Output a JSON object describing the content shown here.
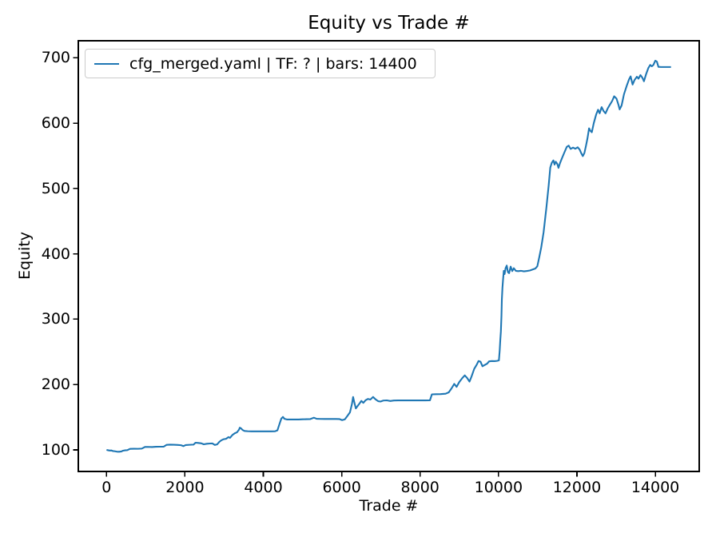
{
  "chart_data": {
    "type": "line",
    "title": "Equity vs Trade #",
    "xlabel": "Trade #",
    "ylabel": "Equity",
    "xlim": [
      -720,
      15120
    ],
    "ylim": [
      67,
      726
    ],
    "xticks": [
      0,
      2000,
      4000,
      6000,
      8000,
      10000,
      12000,
      14000
    ],
    "yticks": [
      100,
      200,
      300,
      400,
      500,
      600,
      700
    ],
    "grid": false,
    "legend": {
      "position": "upper-left",
      "entries": [
        {
          "label": "cfg_merged.yaml | TF: ? | bars: 14400",
          "color": "#1f77b4"
        }
      ]
    },
    "series": [
      {
        "name": "cfg_merged.yaml | TF: ? | bars: 14400",
        "color": "#1f77b4",
        "points": [
          [
            0,
            100
          ],
          [
            40,
            99.5
          ],
          [
            80,
            99
          ],
          [
            120,
            99.2
          ],
          [
            160,
            98.3
          ],
          [
            200,
            98
          ],
          [
            260,
            97.4
          ],
          [
            320,
            97.2
          ],
          [
            380,
            97.6
          ],
          [
            420,
            98.8
          ],
          [
            470,
            99.3
          ],
          [
            530,
            99.6
          ],
          [
            600,
            101.6
          ],
          [
            700,
            101.8
          ],
          [
            800,
            101.7
          ],
          [
            900,
            102
          ],
          [
            980,
            104.5
          ],
          [
            1060,
            104.6
          ],
          [
            1160,
            104.4
          ],
          [
            1260,
            104.8
          ],
          [
            1360,
            104.9
          ],
          [
            1460,
            105
          ],
          [
            1530,
            107.7
          ],
          [
            1620,
            108
          ],
          [
            1720,
            107.9
          ],
          [
            1820,
            107.6
          ],
          [
            1900,
            107.2
          ],
          [
            1960,
            105.8
          ],
          [
            2020,
            107.4
          ],
          [
            2120,
            107.8
          ],
          [
            2220,
            108.1
          ],
          [
            2270,
            111
          ],
          [
            2340,
            110.6
          ],
          [
            2420,
            110
          ],
          [
            2480,
            108.6
          ],
          [
            2560,
            109.4
          ],
          [
            2640,
            109.8
          ],
          [
            2700,
            109.9
          ],
          [
            2760,
            107.6
          ],
          [
            2820,
            108.4
          ],
          [
            2880,
            112.5
          ],
          [
            2930,
            114.8
          ],
          [
            2990,
            116.4
          ],
          [
            3050,
            117
          ],
          [
            3110,
            119.6
          ],
          [
            3150,
            118.4
          ],
          [
            3210,
            122.8
          ],
          [
            3270,
            125.4
          ],
          [
            3330,
            127
          ],
          [
            3380,
            131
          ],
          [
            3400,
            134
          ],
          [
            3430,
            133
          ],
          [
            3470,
            130.5
          ],
          [
            3520,
            129
          ],
          [
            3600,
            128.6
          ],
          [
            3700,
            128.4
          ],
          [
            3800,
            128.3
          ],
          [
            3900,
            128.3
          ],
          [
            4000,
            128.4
          ],
          [
            4100,
            128.3
          ],
          [
            4200,
            128.4
          ],
          [
            4300,
            128.5
          ],
          [
            4360,
            130
          ],
          [
            4420,
            141
          ],
          [
            4460,
            148
          ],
          [
            4500,
            150.5
          ],
          [
            4540,
            147.5
          ],
          [
            4600,
            146.6
          ],
          [
            4700,
            146.5
          ],
          [
            4800,
            146.5
          ],
          [
            4900,
            146.6
          ],
          [
            5000,
            146.8
          ],
          [
            5100,
            147
          ],
          [
            5200,
            147.2
          ],
          [
            5290,
            149.3
          ],
          [
            5360,
            147.6
          ],
          [
            5460,
            147.4
          ],
          [
            5560,
            147.3
          ],
          [
            5660,
            147.3
          ],
          [
            5760,
            147.3
          ],
          [
            5860,
            147.3
          ],
          [
            5940,
            147.2
          ],
          [
            6010,
            145.6
          ],
          [
            6080,
            146.8
          ],
          [
            6150,
            152.5
          ],
          [
            6210,
            157.5
          ],
          [
            6260,
            170
          ],
          [
            6290,
            181
          ],
          [
            6320,
            173
          ],
          [
            6360,
            163.5
          ],
          [
            6410,
            167.5
          ],
          [
            6460,
            171.5
          ],
          [
            6500,
            175
          ],
          [
            6550,
            172
          ],
          [
            6610,
            176
          ],
          [
            6670,
            178
          ],
          [
            6730,
            177
          ],
          [
            6800,
            181
          ],
          [
            6860,
            177.5
          ],
          [
            6930,
            174.5
          ],
          [
            6990,
            174
          ],
          [
            7060,
            175.5
          ],
          [
            7150,
            175.8
          ],
          [
            7240,
            174.8
          ],
          [
            7330,
            175.6
          ],
          [
            7440,
            175.7
          ],
          [
            7560,
            175.7
          ],
          [
            7700,
            175.7
          ],
          [
            7850,
            175.7
          ],
          [
            8000,
            175.7
          ],
          [
            8130,
            175.7
          ],
          [
            8250,
            175.8
          ],
          [
            8300,
            185
          ],
          [
            8400,
            185.2
          ],
          [
            8520,
            185.4
          ],
          [
            8650,
            186
          ],
          [
            8730,
            188
          ],
          [
            8800,
            194
          ],
          [
            8870,
            201
          ],
          [
            8930,
            196.5
          ],
          [
            9000,
            204
          ],
          [
            9070,
            209.5
          ],
          [
            9140,
            214
          ],
          [
            9200,
            210
          ],
          [
            9260,
            204.5
          ],
          [
            9310,
            212
          ],
          [
            9380,
            224
          ],
          [
            9440,
            230
          ],
          [
            9490,
            236
          ],
          [
            9540,
            235
          ],
          [
            9590,
            228
          ],
          [
            9650,
            230
          ],
          [
            9710,
            232
          ],
          [
            9760,
            235.5
          ],
          [
            9830,
            236
          ],
          [
            9900,
            235.8
          ],
          [
            9960,
            236.2
          ],
          [
            10010,
            237
          ],
          [
            10030,
            252
          ],
          [
            10045,
            268
          ],
          [
            10060,
            281
          ],
          [
            10075,
            305
          ],
          [
            10085,
            330
          ],
          [
            10100,
            348
          ],
          [
            10115,
            360
          ],
          [
            10135,
            374
          ],
          [
            10155,
            369
          ],
          [
            10180,
            378
          ],
          [
            10210,
            382
          ],
          [
            10240,
            372
          ],
          [
            10270,
            370.5
          ],
          [
            10310,
            380.5
          ],
          [
            10350,
            373.5
          ],
          [
            10390,
            378
          ],
          [
            10440,
            374
          ],
          [
            10500,
            373.5
          ],
          [
            10570,
            374
          ],
          [
            10650,
            373.2
          ],
          [
            10730,
            373.8
          ],
          [
            10800,
            374.5
          ],
          [
            10870,
            376
          ],
          [
            10940,
            377.5
          ],
          [
            10990,
            381
          ],
          [
            11040,
            395
          ],
          [
            11090,
            410
          ],
          [
            11150,
            433
          ],
          [
            11220,
            470
          ],
          [
            11280,
            505
          ],
          [
            11320,
            532
          ],
          [
            11360,
            539.5
          ],
          [
            11400,
            543
          ],
          [
            11430,
            536.5
          ],
          [
            11460,
            541
          ],
          [
            11500,
            537.5
          ],
          [
            11530,
            531.5
          ],
          [
            11570,
            539
          ],
          [
            11630,
            548
          ],
          [
            11690,
            556.5
          ],
          [
            11740,
            563.5
          ],
          [
            11790,
            565.5
          ],
          [
            11840,
            560.5
          ],
          [
            11900,
            562.5
          ],
          [
            11960,
            560.8
          ],
          [
            12020,
            563
          ],
          [
            12070,
            559.5
          ],
          [
            12110,
            554
          ],
          [
            12150,
            549.5
          ],
          [
            12190,
            554
          ],
          [
            12230,
            565
          ],
          [
            12270,
            577
          ],
          [
            12310,
            592
          ],
          [
            12340,
            588.5
          ],
          [
            12380,
            586
          ],
          [
            12430,
            600
          ],
          [
            12490,
            613
          ],
          [
            12540,
            620.5
          ],
          [
            12580,
            615
          ],
          [
            12630,
            624.5
          ],
          [
            12680,
            618.5
          ],
          [
            12730,
            615
          ],
          [
            12790,
            623
          ],
          [
            12850,
            629
          ],
          [
            12900,
            634
          ],
          [
            12950,
            641
          ],
          [
            13010,
            637.5
          ],
          [
            13060,
            628
          ],
          [
            13090,
            621
          ],
          [
            13140,
            627
          ],
          [
            13200,
            644
          ],
          [
            13270,
            657
          ],
          [
            13330,
            667
          ],
          [
            13370,
            671.5
          ],
          [
            13420,
            659
          ],
          [
            13470,
            666
          ],
          [
            13530,
            671
          ],
          [
            13570,
            668
          ],
          [
            13620,
            673.5
          ],
          [
            13670,
            669.5
          ],
          [
            13710,
            664
          ],
          [
            13760,
            674
          ],
          [
            13820,
            684
          ],
          [
            13870,
            689
          ],
          [
            13910,
            687
          ],
          [
            13950,
            689
          ],
          [
            14000,
            695.5
          ],
          [
            14040,
            694
          ],
          [
            14080,
            686
          ],
          [
            14150,
            685.8
          ],
          [
            14250,
            685.8
          ],
          [
            14350,
            685.8
          ],
          [
            14400,
            685.8
          ]
        ]
      }
    ]
  }
}
